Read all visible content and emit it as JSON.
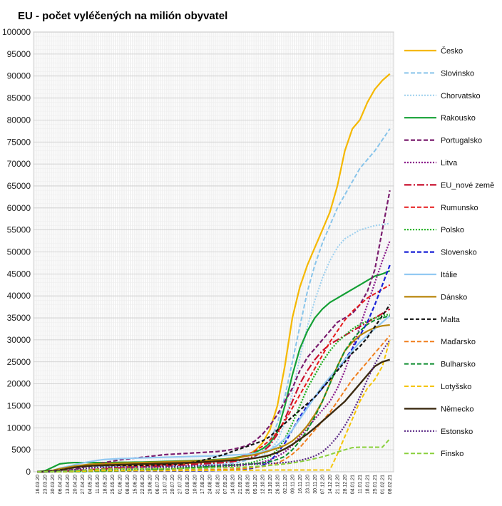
{
  "chart_data": {
    "type": "line",
    "title": "EU - počet vyléčených na milión obyvatel",
    "xlabel": "",
    "ylabel": "",
    "ylim": [
      0,
      100000
    ],
    "ytick_step": 5000,
    "grid": true,
    "legend_position": "right",
    "x": [
      "16.03.20",
      "23.03.20",
      "30.03.20",
      "06.04.20",
      "13.04.20",
      "20.04.20",
      "27.04.20",
      "04.05.20",
      "11.05.20",
      "18.05.20",
      "25.05.20",
      "01.06.20",
      "08.06.20",
      "15.06.20",
      "22.06.20",
      "29.06.20",
      "06.07.20",
      "13.07.20",
      "20.07.20",
      "27.07.20",
      "03.08.20",
      "10.08.20",
      "17.08.20",
      "24.08.20",
      "31.08.20",
      "07.09.20",
      "14.09.20",
      "21.09.20",
      "28.09.20",
      "05.10.20",
      "12.10.20",
      "19.10.20",
      "26.10.20",
      "02.11.20",
      "09.11.20",
      "16.11.20",
      "23.11.20",
      "30.11.20",
      "07.12.20",
      "14.12.20",
      "21.12.20",
      "28.12.20",
      "04.01.21",
      "11.01.21",
      "18.01.21",
      "25.01.21",
      "01.02.21",
      "08.02.21"
    ],
    "series": [
      {
        "name": "Česko",
        "color": "#f5b800",
        "dash": "solid",
        "width": 2.2,
        "values": [
          0,
          0,
          100,
          300,
          700,
          1000,
          1200,
          1300,
          1400,
          1400,
          1450,
          1500,
          1500,
          1550,
          1600,
          1650,
          1700,
          1750,
          1800,
          1850,
          1900,
          2000,
          2100,
          2200,
          2350,
          2500,
          2800,
          3200,
          3800,
          4800,
          6500,
          9500,
          15000,
          24000,
          35000,
          42000,
          47000,
          51000,
          55000,
          59000,
          65000,
          73000,
          78000,
          80000,
          84000,
          87000,
          89000,
          90500
        ]
      },
      {
        "name": "Slovinsko",
        "color": "#88c4ea",
        "dash": "6,3",
        "width": 2,
        "values": [
          0,
          50,
          200,
          500,
          800,
          1000,
          1100,
          1150,
          1150,
          1150,
          1150,
          1150,
          1150,
          1150,
          1150,
          1150,
          1200,
          1250,
          1300,
          1350,
          1400,
          1450,
          1500,
          1550,
          1600,
          1700,
          1900,
          2200,
          2700,
          3400,
          4500,
          6800,
          11000,
          17000,
          25000,
          33000,
          41000,
          47000,
          52000,
          56000,
          60000,
          63000,
          66000,
          69000,
          71000,
          73000,
          75500,
          78000
        ]
      },
      {
        "name": "Chorvatsko",
        "color": "#9ccfee",
        "dash": "2,2",
        "width": 2,
        "values": [
          0,
          0,
          50,
          100,
          200,
          300,
          400,
          450,
          500,
          500,
          500,
          500,
          500,
          550,
          600,
          700,
          800,
          900,
          1000,
          1100,
          1200,
          1300,
          1500,
          1700,
          1900,
          2100,
          2300,
          2500,
          2800,
          3200,
          3800,
          4800,
          7000,
          11000,
          18000,
          26000,
          33000,
          39000,
          44000,
          48000,
          51000,
          53000,
          54000,
          55000,
          55500,
          56000,
          56200,
          56500
        ]
      },
      {
        "name": "Rakousko",
        "color": "#14a035",
        "dash": "solid",
        "width": 2.2,
        "values": [
          0,
          200,
          1000,
          1800,
          2000,
          2100,
          2100,
          2100,
          2100,
          2100,
          2100,
          2150,
          2150,
          2200,
          2200,
          2250,
          2300,
          2350,
          2400,
          2450,
          2500,
          2550,
          2600,
          2700,
          2800,
          2900,
          3100,
          3400,
          3800,
          4400,
          5200,
          6500,
          9000,
          15000,
          22000,
          28000,
          32000,
          35000,
          37000,
          38500,
          39500,
          40500,
          41500,
          42500,
          43500,
          44500,
          45000,
          45700
        ]
      },
      {
        "name": "Portugalsko",
        "color": "#7a1c6e",
        "dash": "6,3",
        "width": 2.2,
        "values": [
          0,
          0,
          50,
          150,
          300,
          600,
          1000,
          1400,
          1800,
          2100,
          2400,
          2700,
          2900,
          3100,
          3300,
          3500,
          3700,
          3900,
          4000,
          4100,
          4200,
          4300,
          4400,
          4500,
          4600,
          4800,
          5100,
          5500,
          6000,
          7000,
          8500,
          10500,
          13000,
          16000,
          19000,
          23000,
          26000,
          28000,
          30000,
          32000,
          34000,
          35000,
          36000,
          38000,
          41000,
          46000,
          55000,
          64000
        ]
      },
      {
        "name": "Litva",
        "color": "#8b1a8b",
        "dash": "2,2",
        "width": 2.2,
        "values": [
          0,
          0,
          0,
          20,
          50,
          100,
          200,
          300,
          400,
          500,
          600,
          650,
          700,
          700,
          700,
          700,
          750,
          800,
          850,
          900,
          950,
          1000,
          1050,
          1100,
          1150,
          1200,
          1300,
          1400,
          1600,
          1900,
          2200,
          2700,
          3500,
          4500,
          6000,
          8000,
          10000,
          12000,
          14000,
          16000,
          19000,
          23000,
          28000,
          33000,
          38000,
          43000,
          48000,
          52500
        ]
      },
      {
        "name": "EU_nové země",
        "color": "#c8102e",
        "dash": "10,3,2,3",
        "width": 2.2,
        "values": [
          0,
          20,
          50,
          100,
          200,
          300,
          400,
          500,
          600,
          700,
          800,
          900,
          1000,
          1050,
          1100,
          1150,
          1200,
          1300,
          1400,
          1500,
          1600,
          1700,
          1800,
          1900,
          2000,
          2100,
          2300,
          2600,
          3000,
          3600,
          4500,
          6000,
          8500,
          12000,
          16000,
          20000,
          23000,
          25500,
          27500,
          29000,
          30000,
          31000,
          32000,
          33000,
          34000,
          35000,
          36000,
          37000
        ]
      },
      {
        "name": "Rumunsko",
        "color": "#e6191a",
        "dash": "6,3",
        "width": 2,
        "values": [
          0,
          0,
          20,
          50,
          100,
          200,
          300,
          450,
          600,
          750,
          900,
          1000,
          1100,
          1200,
          1300,
          1400,
          1500,
          1600,
          1700,
          1800,
          1900,
          2000,
          2100,
          2200,
          2400,
          2600,
          2900,
          3300,
          3900,
          4700,
          5800,
          7200,
          9000,
          11500,
          14500,
          17500,
          20500,
          23500,
          26500,
          29500,
          32000,
          34500,
          36500,
          38000,
          39500,
          40500,
          41500,
          42500
        ]
      },
      {
        "name": "Polsko",
        "color": "#1eb01e",
        "dash": "2,2",
        "width": 2.2,
        "values": [
          0,
          0,
          0,
          20,
          40,
          60,
          100,
          150,
          200,
          250,
          300,
          350,
          400,
          450,
          500,
          550,
          600,
          650,
          700,
          800,
          900,
          1000,
          1100,
          1200,
          1300,
          1400,
          1500,
          1700,
          1900,
          2300,
          2800,
          3500,
          5000,
          7500,
          11000,
          15000,
          19000,
          22000,
          25000,
          27500,
          29500,
          31000,
          32500,
          33500,
          34300,
          35000,
          35500,
          35800
        ]
      },
      {
        "name": "Slovensko",
        "color": "#1a22d6",
        "dash": "6,3",
        "width": 2.2,
        "values": [
          0,
          0,
          10,
          20,
          50,
          80,
          100,
          120,
          130,
          150,
          150,
          150,
          150,
          150,
          150,
          150,
          150,
          160,
          170,
          180,
          190,
          200,
          220,
          250,
          300,
          350,
          400,
          500,
          650,
          900,
          1400,
          2400,
          4200,
          6500,
          9500,
          12500,
          15000,
          17000,
          19000,
          21000,
          23000,
          25500,
          28000,
          31000,
          34000,
          38000,
          42500,
          47000
        ]
      },
      {
        "name": "Itálie",
        "color": "#92c9f2",
        "dash": "solid",
        "width": 2.2,
        "values": [
          0,
          50,
          300,
          800,
          1200,
          1600,
          2000,
          2300,
          2600,
          2800,
          2900,
          3000,
          3050,
          3100,
          3150,
          3200,
          3250,
          3300,
          3350,
          3400,
          3450,
          3500,
          3550,
          3600,
          3650,
          3700,
          3800,
          3900,
          4000,
          4200,
          4500,
          5000,
          6000,
          7500,
          9500,
          12000,
          14500,
          17000,
          19500,
          21500,
          23500,
          25500,
          27500,
          29500,
          31000,
          32500,
          34000,
          35500
        ]
      },
      {
        "name": "Dánsko",
        "color": "#b8860b",
        "dash": "solid",
        "width": 2.2,
        "values": [
          0,
          100,
          300,
          700,
          1000,
          1300,
          1500,
          1700,
          1800,
          1850,
          1900,
          1950,
          2000,
          2050,
          2100,
          2150,
          2200,
          2250,
          2300,
          2350,
          2400,
          2450,
          2500,
          2600,
          2700,
          2800,
          3000,
          3300,
          3600,
          3900,
          4300,
          4800,
          5400,
          6000,
          7000,
          8500,
          10500,
          13000,
          16000,
          20000,
          24000,
          27500,
          29500,
          31000,
          32000,
          32800,
          33200,
          33400
        ]
      },
      {
        "name": "Malta",
        "color": "#111111",
        "dash": "5,3",
        "width": 2.2,
        "values": [
          0,
          50,
          200,
          400,
          700,
          1000,
          1200,
          1300,
          1400,
          1400,
          1450,
          1450,
          1450,
          1450,
          1500,
          1500,
          1550,
          1600,
          1700,
          1800,
          2000,
          2200,
          2600,
          3000,
          3500,
          4000,
          4600,
          5200,
          5800,
          6400,
          7000,
          8000,
          9500,
          11000,
          12500,
          14000,
          15500,
          17000,
          19000,
          21000,
          23000,
          25000,
          27000,
          28500,
          30500,
          33000,
          35500,
          38000
        ]
      },
      {
        "name": "Maďarsko",
        "color": "#f07f1d",
        "dash": "6,3",
        "width": 2,
        "values": [
          0,
          0,
          0,
          20,
          50,
          80,
          120,
          150,
          180,
          200,
          220,
          240,
          260,
          280,
          300,
          320,
          340,
          360,
          380,
          400,
          420,
          440,
          460,
          480,
          500,
          550,
          600,
          700,
          850,
          1000,
          1200,
          1500,
          2000,
          2800,
          4000,
          5500,
          7500,
          9500,
          11500,
          13500,
          16000,
          18500,
          21000,
          23000,
          25000,
          27000,
          29000,
          31000
        ]
      },
      {
        "name": "Bulharsko",
        "color": "#0c8c2e",
        "dash": "6,3",
        "width": 2,
        "values": [
          0,
          0,
          0,
          10,
          20,
          30,
          50,
          80,
          100,
          120,
          150,
          180,
          200,
          250,
          300,
          400,
          500,
          600,
          700,
          800,
          900,
          1000,
          1100,
          1200,
          1300,
          1400,
          1500,
          1600,
          1700,
          1800,
          2000,
          2300,
          2800,
          3500,
          5000,
          7000,
          9500,
          12500,
          16000,
          20000,
          24000,
          27500,
          30000,
          32000,
          33500,
          34500,
          35000,
          35500
        ]
      },
      {
        "name": "Lotyšsko",
        "color": "#f5c400",
        "dash": "6,3",
        "width": 2,
        "values": [
          0,
          0,
          10,
          20,
          50,
          100,
          150,
          200,
          250,
          250,
          250,
          250,
          250,
          250,
          250,
          250,
          250,
          250,
          260,
          270,
          280,
          290,
          300,
          310,
          320,
          330,
          340,
          350,
          360,
          370,
          380,
          390,
          400,
          400,
          400,
          400,
          400,
          400,
          400,
          400,
          4000,
          8000,
          12000,
          16000,
          19000,
          21000,
          24000,
          30000
        ]
      },
      {
        "name": "Německo",
        "color": "#3b2a10",
        "dash": "solid",
        "width": 2.4,
        "values": [
          0,
          0,
          100,
          300,
          700,
          1000,
          1200,
          1350,
          1450,
          1500,
          1550,
          1600,
          1650,
          1700,
          1750,
          1800,
          1850,
          1900,
          1950,
          2000,
          2050,
          2100,
          2200,
          2300,
          2400,
          2500,
          2600,
          2700,
          2900,
          3100,
          3400,
          3800,
          4400,
          5200,
          6200,
          7400,
          8600,
          10000,
          11500,
          13000,
          14500,
          16000,
          18000,
          20000,
          22000,
          24000,
          25000,
          25500
        ]
      },
      {
        "name": "Estonsko",
        "color": "#5b2a86",
        "dash": "2,2",
        "width": 2.2,
        "values": [
          0,
          0,
          50,
          150,
          300,
          500,
          700,
          900,
          1000,
          1050,
          1100,
          1100,
          1100,
          1100,
          1100,
          1100,
          1100,
          1150,
          1200,
          1250,
          1300,
          1350,
          1400,
          1450,
          1500,
          1550,
          1600,
          1650,
          1700,
          1750,
          1800,
          1900,
          2000,
          2100,
          2300,
          2600,
          3000,
          3600,
          4500,
          6000,
          8000,
          10500,
          13500,
          17000,
          21000,
          24500,
          27500,
          30000
        ]
      },
      {
        "name": "Finsko",
        "color": "#8ad03c",
        "dash": "6,3",
        "width": 2,
        "values": [
          0,
          0,
          30,
          80,
          150,
          250,
          350,
          450,
          550,
          600,
          650,
          700,
          700,
          700,
          700,
          700,
          700,
          700,
          700,
          700,
          700,
          750,
          800,
          850,
          900,
          950,
          1000,
          1050,
          1100,
          1200,
          1300,
          1450,
          1600,
          1800,
          2000,
          2300,
          2600,
          3000,
          3400,
          3900,
          4500,
          5000,
          5500,
          5600,
          5600,
          5600,
          5600,
          7500
        ]
      }
    ]
  }
}
